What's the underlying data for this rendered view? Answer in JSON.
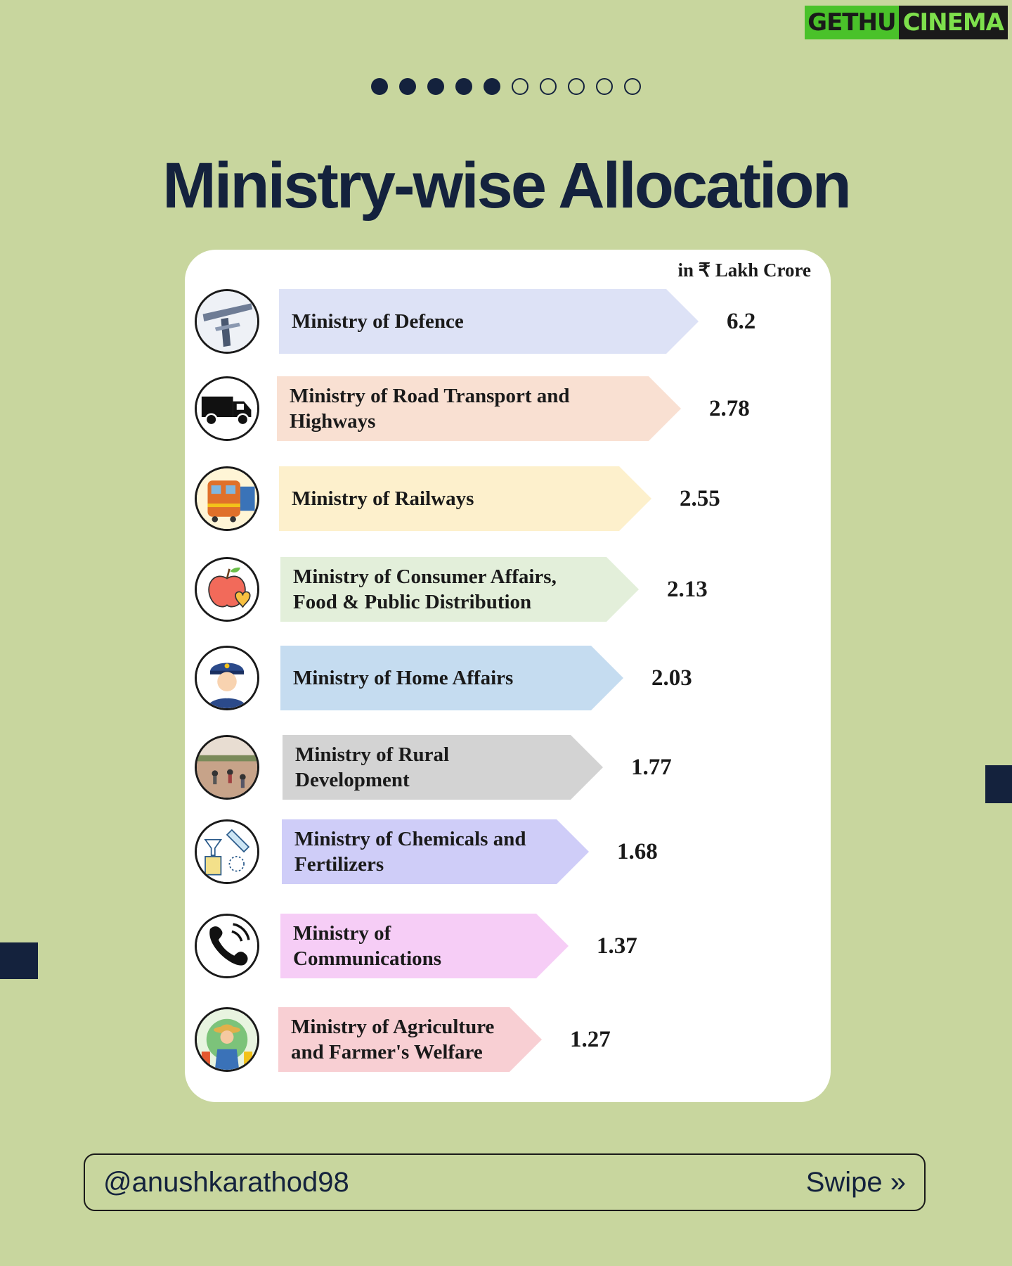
{
  "watermark": {
    "part1": "GETHU",
    "part2": "CINEMA"
  },
  "pagination": {
    "total": 10,
    "active": 5
  },
  "title": "Ministry-wise Allocation",
  "chart_data": {
    "type": "bar",
    "orientation": "horizontal",
    "title": "Ministry-wise Allocation",
    "unit_label": "in ₹ Lakh Crore",
    "categories": [
      "Ministry of Defence",
      "Ministry of Road Transport and Highways",
      "Ministry of Railways",
      "Ministry of Consumer Affairs, Food & Public Distribution",
      "Ministry of Home Affairs",
      "Ministry of Rural Development",
      "Ministry of Chemicals and Fertilizers",
      "Ministry of Communications",
      "Ministry of Agriculture and Farmer's Welfare"
    ],
    "label_lines": [
      [
        "Ministry of Defence"
      ],
      [
        "Ministry of Road Transport and",
        "Highways"
      ],
      [
        "Ministry of Railways"
      ],
      [
        "Ministry of Consumer Affairs,",
        "Food & Public Distribution"
      ],
      [
        "Ministry of Home Affairs"
      ],
      [
        "Ministry of Rural",
        "Development"
      ],
      [
        "Ministry of Chemicals and",
        "Fertilizers"
      ],
      [
        "Ministry of",
        "Communications"
      ],
      [
        "Ministry of Agriculture",
        "and Farmer's Welfare"
      ]
    ],
    "values": [
      6.2,
      2.78,
      2.55,
      2.13,
      2.03,
      1.77,
      1.68,
      1.37,
      1.27
    ],
    "value_labels": [
      "6.2",
      "2.78",
      "2.55",
      "2.13",
      "2.03",
      "1.77",
      "1.68",
      "1.37",
      "1.27"
    ],
    "colors": [
      "#dde2f6",
      "#f9e0d2",
      "#fdf0cc",
      "#e3efda",
      "#c5dcf0",
      "#d3d3d3",
      "#cfcdf8",
      "#f6cdf6",
      "#f8cfd3"
    ],
    "icons": [
      "bridge-icon",
      "truck-icon",
      "train-icon",
      "apple-icon",
      "police-officer-icon",
      "field-workers-icon",
      "lab-flask-icon",
      "telephone-icon",
      "farmer-icon"
    ]
  },
  "footer": {
    "handle": "@anushkarathod98",
    "swipe_label": "Swipe »"
  }
}
